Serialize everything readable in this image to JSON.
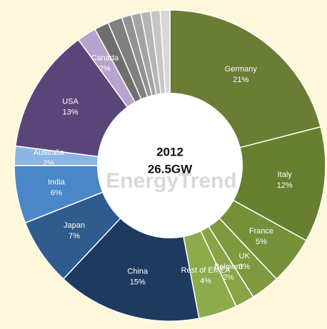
{
  "chart_data": {
    "type": "pie",
    "center_title": "2012",
    "center_subtitle": "26.5GW",
    "watermark": "EnergyTrend",
    "categories": [
      "Germany",
      "Italy",
      "France",
      "UK",
      "Belgium",
      "Rest of EMEA",
      "China",
      "Japan",
      "India",
      "Australia",
      "USA",
      "Canada",
      null,
      null,
      null,
      null,
      null,
      null,
      null
    ],
    "values": [
      21,
      12,
      5,
      3,
      2,
      4,
      15,
      7,
      6,
      2,
      13,
      2,
      1.5,
      1.5,
      1,
      1,
      1,
      1,
      1
    ],
    "value_labels": [
      "21%",
      "12%",
      "5%",
      "3%",
      "2%",
      "4%",
      "15%",
      "7%",
      "6%",
      "2%",
      "13%",
      "2%",
      null,
      null,
      null,
      null,
      null,
      null,
      null
    ],
    "colors": [
      "#6b7d34",
      "#677f2f",
      "#76903a",
      "#80993f",
      "#89a346",
      "#8cab4a",
      "#1f3a5f",
      "#2f5b8d",
      "#4a86c8",
      "#8cb6e2",
      "#5b4578",
      "#b8a3cf",
      "#6e6e6e",
      "#808080",
      "#929292",
      "#a4a4a4",
      "#b5b5b5",
      "#c6c6c6",
      "#d8d8d8"
    ],
    "donut": true
  }
}
